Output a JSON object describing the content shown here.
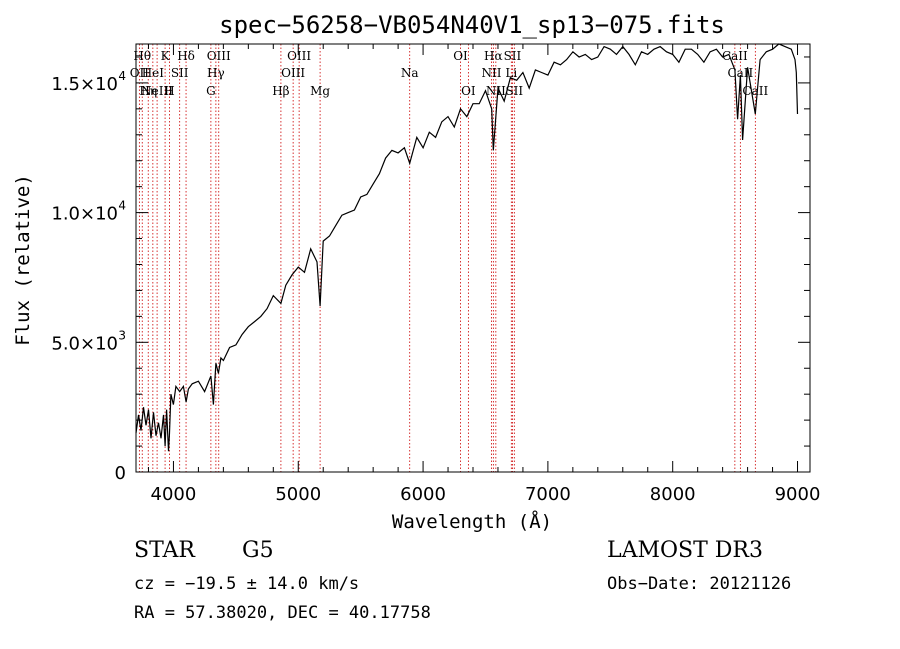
{
  "chart_data": {
    "type": "line",
    "title": "spec−56258−VB054N40V1_sp13−075.fits",
    "xlabel": "Wavelength (Å)",
    "ylabel": "Flux (relative)",
    "xlim": [
      3700,
      9100
    ],
    "ylim": [
      0,
      16500
    ],
    "x_ticks": [
      {
        "value": 4000,
        "label": "4000"
      },
      {
        "value": 5000,
        "label": "5000"
      },
      {
        "value": 6000,
        "label": "6000"
      },
      {
        "value": 7000,
        "label": "7000"
      },
      {
        "value": 8000,
        "label": "8000"
      },
      {
        "value": 9000,
        "label": "9000"
      }
    ],
    "y_ticks": [
      {
        "value": 0,
        "label": "0",
        "sup": ""
      },
      {
        "value": 5000,
        "label": "5.0×10",
        "sup": "3"
      },
      {
        "value": 10000,
        "label": "1.0×10",
        "sup": "4"
      },
      {
        "value": 15000,
        "label": "1.5×10",
        "sup": "4"
      }
    ],
    "series": [
      {
        "name": "spectrum",
        "x": [
          3700,
          3720,
          3740,
          3760,
          3780,
          3800,
          3820,
          3840,
          3860,
          3880,
          3900,
          3920,
          3933,
          3945,
          3960,
          3968,
          3980,
          4000,
          4020,
          4050,
          4080,
          4101,
          4120,
          4150,
          4200,
          4250,
          4300,
          4320,
          4340,
          4360,
          4380,
          4400,
          4450,
          4500,
          4550,
          4600,
          4650,
          4700,
          4750,
          4800,
          4861,
          4900,
          4950,
          5000,
          5050,
          5100,
          5150,
          5175,
          5200,
          5250,
          5300,
          5350,
          5400,
          5450,
          5500,
          5550,
          5600,
          5650,
          5700,
          5750,
          5800,
          5850,
          5893,
          5950,
          6000,
          6050,
          6100,
          6150,
          6200,
          6250,
          6300,
          6350,
          6400,
          6450,
          6500,
          6550,
          6563,
          6600,
          6650,
          6700,
          6750,
          6800,
          6850,
          6900,
          6950,
          7000,
          7050,
          7100,
          7150,
          7200,
          7250,
          7300,
          7350,
          7400,
          7450,
          7500,
          7550,
          7600,
          7650,
          7700,
          7750,
          7800,
          7850,
          7900,
          7950,
          8000,
          8050,
          8100,
          8150,
          8200,
          8250,
          8300,
          8350,
          8400,
          8450,
          8498,
          8520,
          8542,
          8560,
          8600,
          8662,
          8700,
          8750,
          8800,
          8850,
          8900,
          8950,
          8980,
          8990,
          9000
        ],
        "y": [
          1500,
          2200,
          1600,
          2500,
          1800,
          2400,
          1300,
          2300,
          1400,
          1900,
          1300,
          2200,
          1000,
          2400,
          800,
          1500,
          3000,
          2600,
          3300,
          3100,
          3300,
          2700,
          3200,
          3400,
          3500,
          3100,
          3700,
          2600,
          4200,
          3800,
          4400,
          4300,
          4800,
          4900,
          5300,
          5600,
          5800,
          6000,
          6300,
          6800,
          6500,
          7200,
          7600,
          7900,
          7700,
          8600,
          8100,
          6400,
          8900,
          9100,
          9500,
          9900,
          10000,
          10100,
          10600,
          10700,
          11100,
          11500,
          12100,
          12400,
          12300,
          12500,
          11900,
          12900,
          12500,
          13100,
          12900,
          13500,
          13700,
          13300,
          14000,
          13700,
          14200,
          14200,
          14700,
          14000,
          12400,
          14800,
          14300,
          15200,
          15100,
          15400,
          14800,
          15500,
          15400,
          15300,
          15800,
          15700,
          15900,
          16200,
          16000,
          16100,
          15900,
          16000,
          16400,
          16300,
          16100,
          16400,
          16100,
          15700,
          16200,
          16100,
          16300,
          16400,
          16200,
          16100,
          15800,
          16300,
          16300,
          16100,
          15800,
          16200,
          16300,
          16000,
          16100,
          15500,
          13600,
          15300,
          12800,
          15600,
          13800,
          15900,
          16200,
          16300,
          16500,
          16400,
          16300,
          15900,
          15400,
          13800
        ]
      }
    ],
    "emission_lines": [
      {
        "wavelength": 3727,
        "label": "OII",
        "row": 1
      },
      {
        "wavelength": 3750,
        "label": "Hθ",
        "row": 0
      },
      {
        "wavelength": 3798,
        "label": "Hη",
        "row": 2
      },
      {
        "wavelength": 3835,
        "label": "HeI",
        "row": 1
      },
      {
        "wavelength": 3869,
        "label": "NeIII",
        "row": 2
      },
      {
        "wavelength": 3933,
        "label": "K",
        "row": 0
      },
      {
        "wavelength": 3968,
        "label": "H",
        "row": 2
      },
      {
        "wavelength": 4050,
        "label": "SII",
        "row": 1
      },
      {
        "wavelength": 4101,
        "label": "Hδ",
        "row": 0
      },
      {
        "wavelength": 4300,
        "label": "G",
        "row": 2
      },
      {
        "wavelength": 4340,
        "label": "Hγ",
        "row": 1
      },
      {
        "wavelength": 4363,
        "label": "OIII",
        "row": 0
      },
      {
        "wavelength": 4861,
        "label": "Hβ",
        "row": 2
      },
      {
        "wavelength": 4959,
        "label": "OIII",
        "row": 1
      },
      {
        "wavelength": 5007,
        "label": "OIII",
        "row": 0
      },
      {
        "wavelength": 5175,
        "label": "Mg",
        "row": 2
      },
      {
        "wavelength": 5893,
        "label": "Na",
        "row": 1
      },
      {
        "wavelength": 6300,
        "label": "OI",
        "row": 0
      },
      {
        "wavelength": 6363,
        "label": "OI",
        "row": 2
      },
      {
        "wavelength": 6548,
        "label": "NII",
        "row": 1
      },
      {
        "wavelength": 6563,
        "label": "Hα",
        "row": 0
      },
      {
        "wavelength": 6583,
        "label": "NII",
        "row": 2
      },
      {
        "wavelength": 6707,
        "label": "Li",
        "row": 1
      },
      {
        "wavelength": 6716,
        "label": "SII",
        "row": 0
      },
      {
        "wavelength": 6731,
        "label": "SII",
        "row": 2
      },
      {
        "wavelength": 8498,
        "label": "CaII",
        "row": 0
      },
      {
        "wavelength": 8542,
        "label": "CaII",
        "row": 1
      },
      {
        "wavelength": 8662,
        "label": "CaII",
        "row": 2
      }
    ]
  },
  "info": {
    "object_class": "STAR",
    "subclass": "G5",
    "redshift": "cz = −19.5 ± 14.0 km/s",
    "coordinates": "RA =  57.38020, DEC =  40.17758",
    "survey": "LAMOST DR3",
    "obs_date": "Obs−Date: 20121126"
  },
  "colors": {
    "spectrum": "#000000",
    "emission_line": "#cc0000",
    "axes": "#000000"
  }
}
